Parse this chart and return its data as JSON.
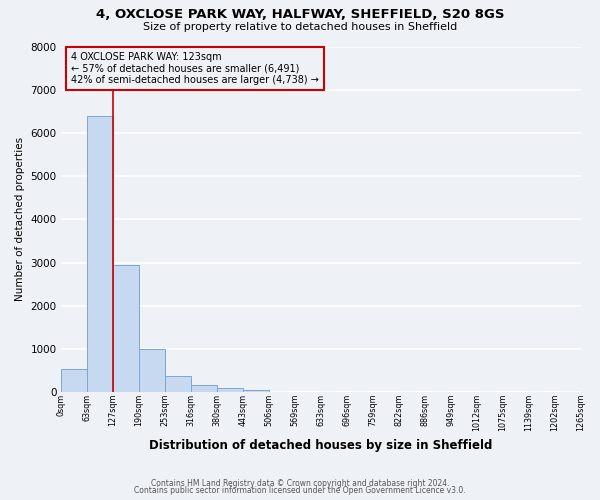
{
  "title1": "4, OXCLOSE PARK WAY, HALFWAY, SHEFFIELD, S20 8GS",
  "title2": "Size of property relative to detached houses in Sheffield",
  "xlabel": "Distribution of detached houses by size in Sheffield",
  "ylabel": "Number of detached properties",
  "bar_edges": [
    0,
    63,
    127,
    190,
    253,
    316,
    380,
    443,
    506,
    569,
    633,
    696,
    759,
    822,
    886,
    949,
    1012,
    1075,
    1139,
    1202,
    1265
  ],
  "bar_heights": [
    550,
    6400,
    2950,
    1000,
    380,
    160,
    90,
    50,
    0,
    0,
    0,
    0,
    0,
    0,
    0,
    0,
    0,
    0,
    0,
    0
  ],
  "bar_color": "#c6d9f0",
  "bar_edge_color": "#7ba7d0",
  "property_line_x": 127,
  "property_line_color": "#cc0000",
  "ylim": [
    0,
    8000
  ],
  "yticks": [
    0,
    1000,
    2000,
    3000,
    4000,
    5000,
    6000,
    7000,
    8000
  ],
  "xtick_labels": [
    "0sqm",
    "63sqm",
    "127sqm",
    "190sqm",
    "253sqm",
    "316sqm",
    "380sqm",
    "443sqm",
    "506sqm",
    "569sqm",
    "633sqm",
    "696sqm",
    "759sqm",
    "822sqm",
    "886sqm",
    "949sqm",
    "1012sqm",
    "1075sqm",
    "1139sqm",
    "1202sqm",
    "1265sqm"
  ],
  "annotation_line1": "4 OXCLOSE PARK WAY: 123sqm",
  "annotation_line2": "← 57% of detached houses are smaller (6,491)",
  "annotation_line3": "42% of semi-detached houses are larger (4,738) →",
  "annotation_box_color": "#cc0000",
  "bg_color": "#eef2f7",
  "grid_color": "#ffffff",
  "footer1": "Contains HM Land Registry data © Crown copyright and database right 2024.",
  "footer2": "Contains public sector information licensed under the Open Government Licence v3.0."
}
